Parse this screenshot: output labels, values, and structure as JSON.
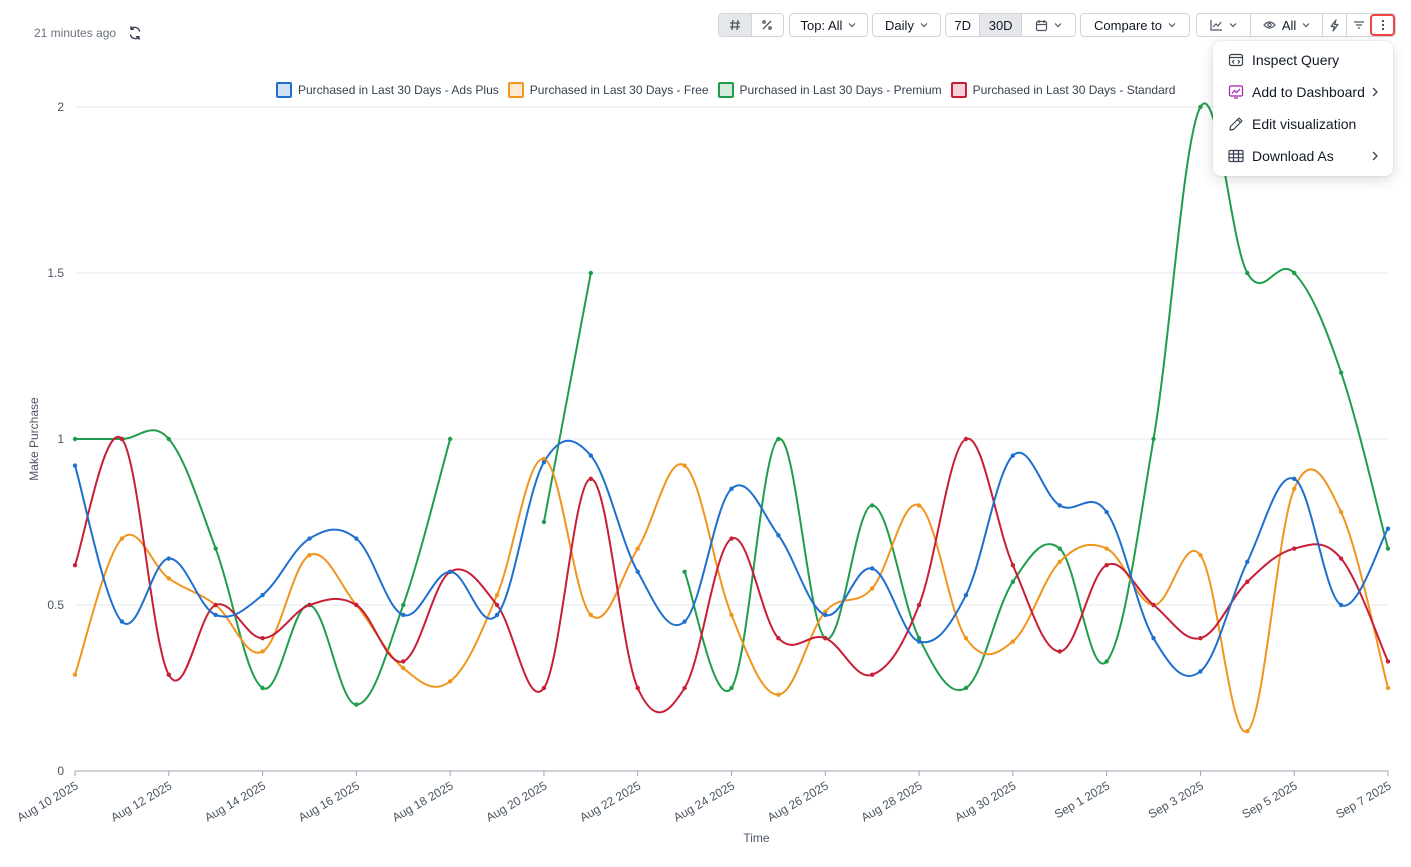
{
  "header": {
    "timestamp": "21 minutes ago",
    "refresh_icon": "refresh-icon"
  },
  "toolbar": {
    "number_icon": "hash-icon",
    "percent_icon": "percent-icon",
    "top_select": "Top: All",
    "interval_select": "Daily",
    "range_7d": "7D",
    "range_30d": "30D",
    "calendar_icon": "calendar-icon",
    "compare_select": "Compare to",
    "chart_type_icon": "line-chart-icon",
    "visibility_icon": "eye-icon",
    "visibility_select": "All",
    "lightning_icon": "lightning-icon",
    "filter_icon": "filter-icon",
    "more_icon": "more-vertical-icon"
  },
  "menu": {
    "items": [
      {
        "label": "Inspect Query",
        "icon": "inspect-query-icon",
        "submenu": false
      },
      {
        "label": "Add to Dashboard",
        "icon": "dashboard-icon",
        "submenu": true
      },
      {
        "label": "Edit visualization",
        "icon": "pencil-icon",
        "submenu": false
      },
      {
        "label": "Download As",
        "icon": "table-icon",
        "submenu": true
      }
    ]
  },
  "chart_data": {
    "type": "line",
    "xlabel": "Time",
    "ylabel": "Make Purchase",
    "ylim": [
      0,
      2
    ],
    "yticks": [
      "0",
      "0.5",
      "1",
      "1.5",
      "2"
    ],
    "grid": true,
    "legend_position": "top",
    "x": [
      "Aug 10 2025",
      "Aug 11 2025",
      "Aug 12 2025",
      "Aug 13 2025",
      "Aug 14 2025",
      "Aug 15 2025",
      "Aug 16 2025",
      "Aug 17 2025",
      "Aug 18 2025",
      "Aug 19 2025",
      "Aug 20 2025",
      "Aug 21 2025",
      "Aug 22 2025",
      "Aug 23 2025",
      "Aug 24 2025",
      "Aug 25 2025",
      "Aug 26 2025",
      "Aug 27 2025",
      "Aug 28 2025",
      "Aug 29 2025",
      "Aug 30 2025",
      "Aug 31 2025",
      "Sep 1 2025",
      "Sep 2 2025",
      "Sep 3 2025",
      "Sep 4 2025",
      "Sep 5 2025",
      "Sep 6 2025",
      "Sep 7 2025"
    ],
    "x_tick_labels": [
      "Aug 10 2025",
      "Aug 12 2025",
      "Aug 14 2025",
      "Aug 16 2025",
      "Aug 18 2025",
      "Aug 20 2025",
      "Aug 22 2025",
      "Aug 24 2025",
      "Aug 26 2025",
      "Aug 28 2025",
      "Aug 30 2025",
      "Sep 1 2025",
      "Sep 3 2025",
      "Sep 5 2025",
      "Sep 7 2025"
    ],
    "series": [
      {
        "name": "Purchased in Last 30 Days - Ads Plus",
        "color": "#1f6fcf",
        "values": [
          0.92,
          0.45,
          0.64,
          0.47,
          0.53,
          0.7,
          0.7,
          0.47,
          0.6,
          0.47,
          0.93,
          0.95,
          0.6,
          0.45,
          0.85,
          0.71,
          0.47,
          0.61,
          0.39,
          0.53,
          0.95,
          0.8,
          0.78,
          0.4,
          0.3,
          0.63,
          0.88,
          0.5,
          0.73
        ]
      },
      {
        "name": "Purchased in Last 30 Days - Free",
        "color": "#f0951d",
        "values": [
          0.29,
          0.7,
          0.58,
          0.5,
          0.36,
          0.65,
          0.5,
          0.31,
          0.27,
          0.53,
          0.94,
          0.47,
          0.67,
          0.92,
          0.47,
          0.23,
          0.48,
          0.55,
          0.8,
          0.4,
          0.39,
          0.63,
          0.67,
          0.5,
          0.65,
          0.12,
          0.85,
          0.78,
          0.25
        ]
      },
      {
        "name": "Purchased in Last 30 Days - Premium",
        "color": "#1f9d4c",
        "values": [
          1.0,
          1.0,
          1.0,
          0.67,
          0.25,
          0.5,
          0.2,
          0.5,
          1.0,
          null,
          0.75,
          1.5,
          null,
          0.6,
          0.25,
          1.0,
          0.4,
          0.8,
          0.4,
          0.25,
          0.57,
          0.67,
          0.33,
          1.0,
          2.0,
          1.5,
          1.5,
          1.2,
          0.67
        ]
      },
      {
        "name": "Purchased in Last 30 Days - Standard",
        "color": "#c81e37",
        "values": [
          0.62,
          1.0,
          0.29,
          0.5,
          0.4,
          0.5,
          0.5,
          0.33,
          0.6,
          0.5,
          0.25,
          0.88,
          0.25,
          0.25,
          0.7,
          0.4,
          0.4,
          0.29,
          0.5,
          1.0,
          0.62,
          0.36,
          0.62,
          0.5,
          0.4,
          0.57,
          0.67,
          0.64,
          0.33
        ]
      }
    ]
  }
}
